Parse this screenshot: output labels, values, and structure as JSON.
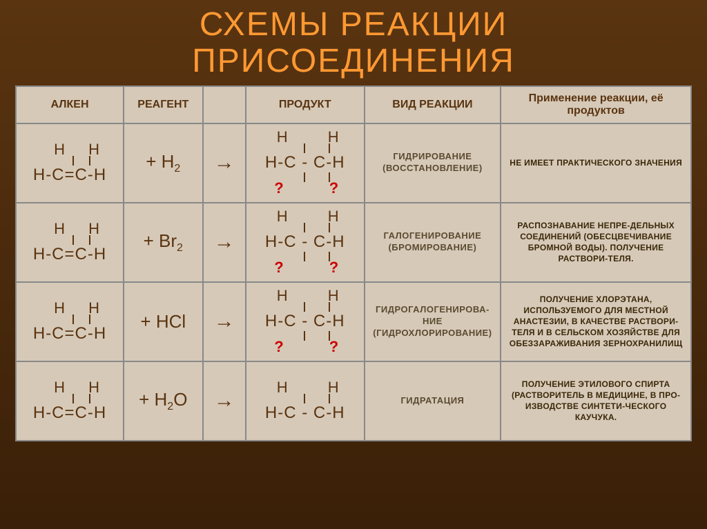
{
  "title_line1": "СХЕМЫ РЕАКЦИИ",
  "title_line2": "ПРИСОЕДИНЕНИЯ",
  "headers": {
    "alkene": "АЛКЕН",
    "reagent": "РЕАГЕНТ",
    "product": "ПРОДУКТ",
    "type": "ВИД РЕАКЦИИ",
    "application": "Применение реакции, её продуктов"
  },
  "rows": [
    {
      "reagent_plus": "+ H",
      "reagent_sub": "2",
      "arrow": "→",
      "type": "ГИДРИРОВАНИЕ (ВОССТАНОВЛЕНИЕ)",
      "application": "НЕ ИМЕЕТ ПРАКТИЧЕСКОГО ЗНАЧЕНИЯ",
      "app_center": true
    },
    {
      "reagent_plus": "+ Br",
      "reagent_sub": "2",
      "arrow": "→",
      "type": "ГАЛОГЕНИРОВАНИЕ (БРОМИРОВАНИЕ)",
      "application": "РАСПОЗНАВАНИЕ НЕПРЕ-ДЕЛЬНЫХ СОЕДИНЕНИЙ (ОБЕСЦВЕЧИВАНИЕ БРОМНОЙ ВОДЫ). ПОЛУЧЕНИЕ РАСТВОРИ-ТЕЛЯ.",
      "app_center": false
    },
    {
      "reagent_plus": "+ HCl",
      "reagent_sub": "",
      "arrow": "→",
      "type": "ГИДРОГАЛОГЕНИРОВА-НИЕ (ГИДРОХЛОРИРОВАНИЕ)",
      "application": "ПОЛУЧЕНИЕ ХЛОРЭТАНА, ИСПОЛЬЗУЕМОГО ДЛЯ МЕСТНОЙ АНАСТЕЗИИ, В КАЧЕСТВЕ РАСТВОРИ-ТЕЛЯ И В СЕЛЬСКОМ ХОЗЯЙСТВЕ ДЛЯ ОБЕЗЗАРАЖИВАНИЯ ЗЕРНОХРАНИЛИЩ",
      "app_center": false
    },
    {
      "reagent_plus": "+ H",
      "reagent_sub": "2",
      "reagent_tail": "O",
      "arrow": "→",
      "type": "ГИДРАТАЦИЯ",
      "application": "ПОЛУЧЕНИЕ ЭТИЛОВОГО СПИРТА (РАСТВОРИТЕЛЬ В МЕДИЦИНЕ, В ПРО-ИЗВОДСТВЕ СИНТЕТИ-ЧЕСКОГО КАУЧУКА.",
      "app_center": false
    }
  ],
  "alkene_top": "H  H",
  "alkene_main": "H-C=C-H",
  "product_top": "H     H",
  "product_main": "H-C - C-H",
  "product_qmarks": "?     ?",
  "colors": {
    "title": "#ff9933",
    "background_top": "#5a3410",
    "background_bottom": "#3a2008",
    "cell_bg": "#d6c9b8",
    "border": "#888888",
    "text": "#5a3410",
    "qmark": "#cc0000"
  }
}
